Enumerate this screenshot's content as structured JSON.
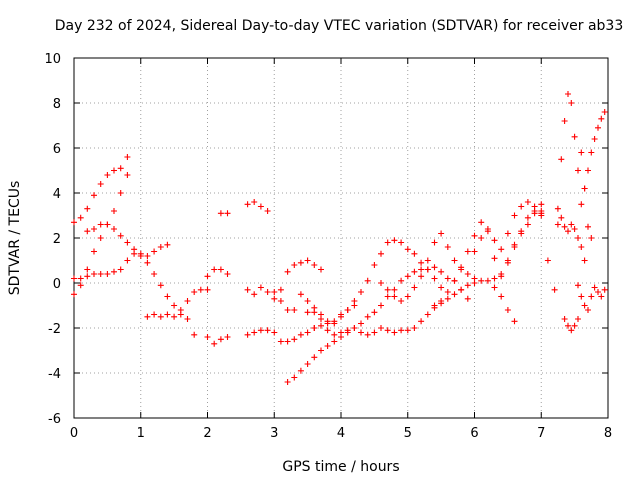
{
  "chart_data": {
    "type": "scatter",
    "title": "Day 232 of 2024, Sidereal Day-to-day VTEC variation (SDTVAR) for receiver ab33",
    "xlabel": "GPS time / hours",
    "ylabel": "SDTVAR / TECUs",
    "xlim": [
      0,
      8
    ],
    "ylim": [
      -6,
      10
    ],
    "xticks": [
      0,
      1,
      2,
      3,
      4,
      5,
      6,
      7,
      8
    ],
    "yticks": [
      -6,
      -4,
      -2,
      0,
      2,
      4,
      6,
      8,
      10
    ],
    "grid": true,
    "legend": "none",
    "marker": "plus",
    "color": "#ff0000",
    "series": [
      {
        "x": [
          0.0,
          0.1,
          0.2,
          0.3,
          0.4,
          0.5,
          0.6,
          0.7,
          0.8
        ],
        "y": [
          2.7,
          2.9,
          3.3,
          3.9,
          4.4,
          4.8,
          5.0,
          5.1,
          5.6
        ]
      },
      {
        "x": [
          0.0,
          0.1,
          0.2,
          0.3,
          0.4,
          0.5,
          0.6,
          0.7,
          0.8
        ],
        "y": [
          -0.5,
          -0.1,
          0.6,
          1.4,
          2.0,
          2.6,
          3.2,
          4.0,
          4.8
        ]
      },
      {
        "x": [
          0.0,
          0.1,
          0.2,
          0.3,
          0.4,
          0.5,
          0.6,
          0.7,
          0.8,
          0.9,
          1.0,
          1.1,
          1.2,
          1.3,
          1.4
        ],
        "y": [
          0.2,
          0.2,
          0.3,
          0.4,
          0.4,
          0.4,
          0.5,
          0.6,
          1.0,
          1.3,
          1.3,
          1.2,
          1.4,
          1.6,
          1.7
        ]
      },
      {
        "x": [
          0.2,
          0.3,
          0.4,
          0.5,
          0.6,
          0.7,
          0.8,
          0.9,
          1.0,
          1.1,
          1.2,
          1.3,
          1.4,
          1.5,
          1.6,
          1.7,
          1.8,
          1.9,
          2.0
        ],
        "y": [
          2.3,
          2.4,
          2.6,
          2.6,
          2.4,
          2.1,
          1.8,
          1.5,
          1.2,
          0.9,
          0.4,
          -0.1,
          -0.6,
          -1.0,
          -1.2,
          -0.8,
          -0.4,
          -0.3,
          -0.3
        ]
      },
      {
        "x": [
          1.1,
          1.2,
          1.3,
          1.4,
          1.5,
          1.6,
          1.7,
          1.8
        ],
        "y": [
          -1.5,
          -1.4,
          -1.5,
          -1.4,
          -1.5,
          -1.4,
          -1.6,
          -2.3
        ]
      },
      {
        "x": [
          2.0,
          2.1,
          2.2,
          2.3
        ],
        "y": [
          -2.4,
          -2.7,
          -2.5,
          -2.4
        ]
      },
      {
        "x": [
          2.0,
          2.1,
          2.2,
          2.3
        ],
        "y": [
          0.3,
          0.6,
          0.6,
          0.4
        ]
      },
      {
        "x": [
          2.2,
          2.3
        ],
        "y": [
          3.1,
          3.1
        ]
      },
      {
        "x": [
          2.6,
          2.7,
          2.8,
          2.9
        ],
        "y": [
          3.5,
          3.6,
          3.4,
          3.2
        ]
      },
      {
        "x": [
          2.6,
          2.7,
          2.8,
          2.9,
          3.0,
          3.1,
          3.2,
          3.3,
          3.4,
          3.5,
          3.6
        ],
        "y": [
          -2.3,
          -2.2,
          -2.1,
          -2.1,
          -2.2,
          -2.6,
          -2.6,
          -2.5,
          -2.3,
          -2.2,
          -2.0
        ]
      },
      {
        "x": [
          2.6,
          2.7,
          2.8,
          2.9,
          3.0,
          3.1,
          3.2,
          3.3,
          3.4,
          3.5,
          3.6,
          3.7
        ],
        "y": [
          -0.3,
          -0.5,
          -0.2,
          -0.4,
          -0.7,
          -0.3,
          0.5,
          0.8,
          0.9,
          1.0,
          0.8,
          0.6
        ]
      },
      {
        "x": [
          3.0,
          3.1,
          3.2,
          3.3,
          3.4,
          3.5,
          3.6,
          3.7,
          3.8,
          3.9,
          4.0,
          4.1,
          4.2
        ],
        "y": [
          -0.4,
          -0.8,
          -1.2,
          -1.2,
          -0.5,
          -0.8,
          -1.3,
          -1.6,
          -1.8,
          -1.7,
          -1.4,
          -1.2,
          -1.0
        ]
      },
      {
        "x": [
          3.2,
          3.3,
          3.4,
          3.5,
          3.6,
          3.7,
          3.8,
          3.9,
          4.0,
          4.1,
          4.2,
          4.3,
          4.4,
          4.5,
          4.6,
          4.7,
          4.8,
          4.9,
          5.0,
          5.1,
          5.2,
          5.3,
          5.4,
          5.5,
          5.6,
          5.7,
          5.8,
          5.9
        ],
        "y": [
          -4.4,
          -4.2,
          -3.9,
          -3.6,
          -3.3,
          -3.0,
          -2.8,
          -2.6,
          -2.4,
          -2.2,
          -2.0,
          -1.8,
          -1.5,
          -1.3,
          -1.0,
          -0.6,
          -0.3,
          0.1,
          0.3,
          0.5,
          0.6,
          0.6,
          0.7,
          0.5,
          0.2,
          0.1,
          -0.3,
          -0.7
        ]
      },
      {
        "x": [
          3.5,
          3.6,
          3.7,
          3.8,
          3.9,
          4.0,
          4.1,
          4.2,
          4.3,
          4.4,
          4.5,
          4.6,
          4.7,
          4.8,
          4.9,
          5.0,
          5.1,
          5.2,
          5.3,
          5.4,
          5.5
        ],
        "y": [
          -1.3,
          -1.1,
          -1.4,
          -1.7,
          -1.8,
          -1.5,
          -1.2,
          -0.8,
          -0.4,
          0.1,
          0.8,
          1.3,
          1.8,
          1.9,
          1.8,
          1.5,
          1.3,
          0.9,
          0.6,
          0.2,
          -0.2
        ]
      },
      {
        "x": [
          3.6,
          3.7,
          3.8,
          3.9,
          4.0,
          4.1,
          4.2,
          4.3,
          4.4,
          4.5,
          4.6,
          4.7,
          4.8,
          4.9,
          5.0,
          5.1,
          5.2,
          5.3,
          5.4,
          5.5,
          5.6,
          5.7,
          5.8,
          5.9,
          6.0,
          6.1,
          6.2,
          6.3,
          6.4,
          6.5,
          6.6,
          6.7,
          6.8,
          6.9,
          7.0
        ],
        "y": [
          -2.0,
          -1.9,
          -2.1,
          -2.3,
          -2.2,
          -2.1,
          -2.0,
          -2.2,
          -2.3,
          -2.2,
          -2.0,
          -2.1,
          -2.2,
          -2.1,
          -2.1,
          -2.0,
          -1.7,
          -1.4,
          -1.1,
          -0.9,
          -0.7,
          -0.5,
          -0.3,
          -0.1,
          0.0,
          0.1,
          0.1,
          0.2,
          0.4,
          0.9,
          1.6,
          2.3,
          2.9,
          3.1,
          3.0
        ]
      },
      {
        "x": [
          4.6,
          4.7,
          4.8,
          4.9,
          5.0,
          5.1,
          5.2,
          5.3,
          5.4,
          5.5,
          5.6,
          5.7,
          5.8,
          5.9,
          6.0
        ],
        "y": [
          0.0,
          -0.3,
          -0.6,
          -0.8,
          -0.6,
          -0.2,
          0.3,
          1.0,
          1.8,
          2.2,
          1.6,
          1.0,
          0.6,
          0.4,
          0.2
        ]
      },
      {
        "x": [
          5.4,
          5.5,
          5.6,
          5.7,
          5.8,
          5.9,
          6.0,
          6.1,
          6.2,
          6.3,
          6.4,
          6.5,
          6.6
        ],
        "y": [
          -1.0,
          -0.8,
          -0.4,
          0.1,
          0.7,
          1.4,
          2.1,
          2.7,
          2.3,
          1.1,
          -0.6,
          -1.2,
          -1.7
        ]
      },
      {
        "x": [
          6.0,
          6.1,
          6.2,
          6.3,
          6.4,
          6.5,
          6.6,
          6.7,
          6.8,
          6.9,
          7.0
        ],
        "y": [
          1.4,
          2.0,
          2.4,
          1.9,
          1.5,
          2.2,
          3.0,
          3.4,
          3.6,
          3.4,
          3.2
        ]
      },
      {
        "x": [
          6.3,
          6.4,
          6.5,
          6.6,
          6.7,
          6.8,
          6.9,
          7.0
        ],
        "y": [
          -0.2,
          0.3,
          1.0,
          1.7,
          2.2,
          2.6,
          3.2,
          3.5
        ]
      },
      {
        "x": [
          7.0,
          7.1,
          7.2
        ],
        "y": [
          3.1,
          1.0,
          -0.3
        ]
      },
      {
        "x": [
          7.25,
          7.3,
          7.35,
          7.4,
          7.45,
          7.5,
          7.55,
          7.6,
          7.65,
          7.7,
          7.75
        ],
        "y": [
          3.3,
          5.5,
          7.2,
          8.4,
          8.0,
          6.5,
          5.0,
          5.8,
          4.2,
          2.5,
          2.0
        ]
      },
      {
        "x": [
          7.25,
          7.3,
          7.35,
          7.4,
          7.45,
          7.5,
          7.55,
          7.6,
          7.65
        ],
        "y": [
          2.6,
          2.9,
          2.5,
          2.3,
          2.6,
          2.4,
          2.0,
          1.6,
          1.0
        ]
      },
      {
        "x": [
          7.35,
          7.4,
          7.45,
          7.5,
          7.55
        ],
        "y": [
          -1.6,
          -1.9,
          -2.1,
          -1.9,
          -1.6
        ]
      },
      {
        "x": [
          7.55,
          7.6,
          7.65,
          7.7,
          7.75,
          7.8,
          7.85,
          7.9,
          7.95
        ],
        "y": [
          -0.1,
          -0.6,
          -1.0,
          -1.2,
          -0.6,
          -0.2,
          -0.4,
          -0.6,
          -0.3
        ]
      },
      {
        "x": [
          7.6,
          7.65,
          7.7,
          7.75,
          7.8,
          7.85,
          7.9,
          7.95
        ],
        "y": [
          3.5,
          4.2,
          5.0,
          5.8,
          6.4,
          6.9,
          7.3,
          7.6
        ]
      }
    ]
  }
}
